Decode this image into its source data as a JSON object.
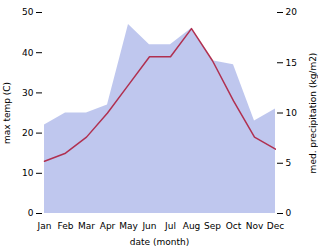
{
  "chart_data": {
    "type": "line",
    "xlabel": "date (month)",
    "ylabel": "max temp (C)",
    "y2label": "med. precipitation (kg/m2)",
    "categories": [
      "Jan",
      "Feb",
      "Mar",
      "Apr",
      "May",
      "Jun",
      "Jul",
      "Aug",
      "Sep",
      "Oct",
      "Nov",
      "Dec"
    ],
    "series": [
      {
        "type": "area",
        "color": "#aab4e8",
        "values": [
          22,
          25,
          25,
          27,
          47,
          42,
          42,
          46,
          38,
          37,
          23,
          26
        ]
      },
      {
        "type": "line",
        "color": "#b03050",
        "values": [
          13,
          15,
          19,
          25,
          32,
          39,
          39,
          46,
          38,
          28,
          19,
          16
        ]
      }
    ],
    "ylim": [
      0,
      50
    ],
    "yticks": [
      0,
      10,
      20,
      30,
      40,
      50
    ],
    "y2lim": [
      0,
      20
    ],
    "y2ticks": [
      0,
      5,
      10,
      15,
      20
    ],
    "grid": false
  }
}
